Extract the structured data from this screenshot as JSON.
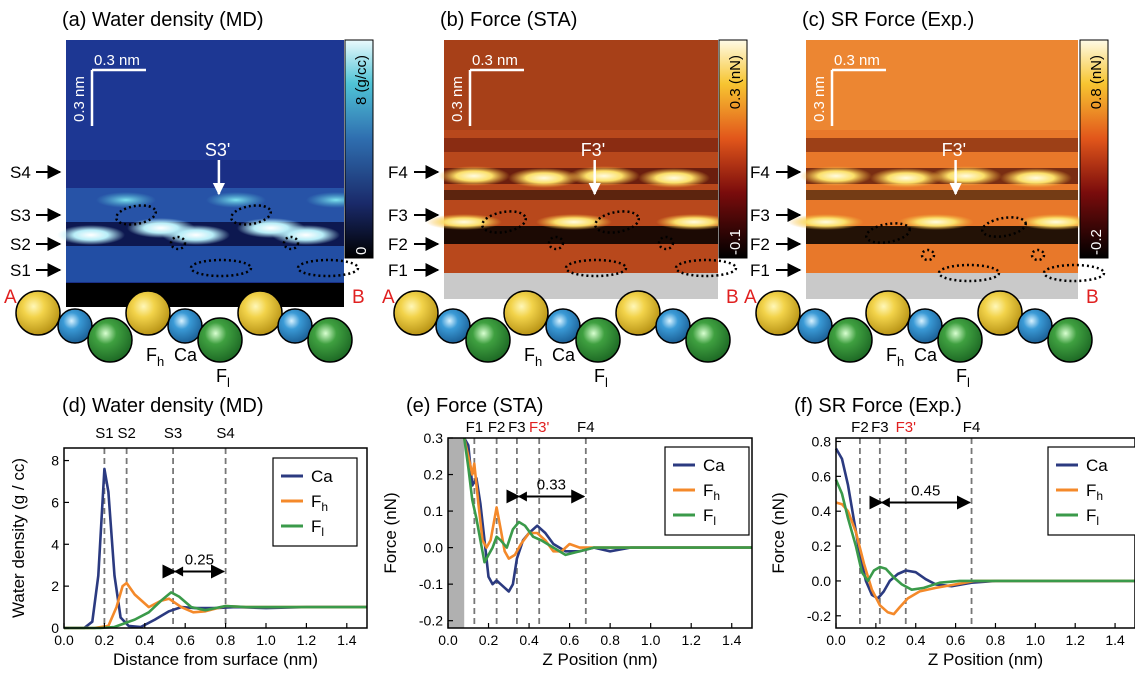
{
  "colors": {
    "Ca": "#2b3a80",
    "Fh": "#f4892a",
    "Fl": "#3a9a4a",
    "ref": "#e02020",
    "grid": "#777777"
  },
  "maps": [
    {
      "title": "(a) Water density (MD)",
      "scale_label": "0.3 nm",
      "colorbar": {
        "max_label": "8",
        "min_label": "0",
        "unit": "(g/cc)",
        "scheme": "black-blue-cyan-white"
      },
      "arrow_label": "S3'",
      "layers": [
        "S4",
        "S3",
        "S2",
        "S1"
      ],
      "end_labels": [
        "A",
        "B"
      ],
      "atom_labels": [
        "F",
        "h",
        "Ca",
        "F",
        "l"
      ]
    },
    {
      "title": "(b) Force (STA)",
      "scale_label": "0.3 nm",
      "colorbar": {
        "max_label": "0.3",
        "min_label": "-0.1",
        "unit": "(nN)",
        "scheme": "black-red-orange-yellow-white"
      },
      "arrow_label": "F3'",
      "layers": [
        "F4",
        "F3",
        "F2",
        "F1"
      ],
      "end_labels": [
        "A",
        "B"
      ],
      "atom_labels": [
        "F",
        "h",
        "Ca",
        "F",
        "l"
      ]
    },
    {
      "title": "(c) SR Force (Exp.)",
      "scale_label": "0.3 nm",
      "colorbar": {
        "max_label": "0.8",
        "min_label": "-0.2",
        "unit": "(nN)",
        "scheme": "black-red-orange-yellow-white"
      },
      "arrow_label": "F3'",
      "layers": [
        "F4",
        "F3",
        "F2",
        "F1"
      ],
      "end_labels": [
        "A",
        "B"
      ],
      "atom_labels": [
        "F",
        "h",
        "Ca",
        "F",
        "l"
      ]
    }
  ],
  "chart_data": [
    {
      "type": "line",
      "title": "(d) Water density (MD)",
      "xlabel": "Distance from surface (nm)",
      "ylabel": "Water density (g / cc)",
      "xlim": [
        0,
        1.5
      ],
      "ylim": [
        0,
        8.6
      ],
      "xticks": [
        "0.0",
        "0.2",
        "0.4",
        "0.6",
        "0.8",
        "1.0",
        "1.2",
        "1.4"
      ],
      "yticks": [
        "0",
        "2",
        "4",
        "6",
        "8"
      ],
      "vlines": [
        {
          "x": 0.2,
          "label": "S1"
        },
        {
          "x": 0.31,
          "label": "S2"
        },
        {
          "x": 0.54,
          "label": "S3"
        },
        {
          "x": 0.8,
          "label": "S4"
        }
      ],
      "span": {
        "x1": 0.54,
        "x2": 0.8,
        "label": "0.25",
        "y": 2.7
      },
      "shade": null,
      "legend": "top-right",
      "series": [
        {
          "name": "Ca",
          "key": "Ca",
          "points": [
            [
              0,
              0
            ],
            [
              0.1,
              0
            ],
            [
              0.14,
              0.3
            ],
            [
              0.17,
              2.5
            ],
            [
              0.2,
              7.6
            ],
            [
              0.22,
              6.5
            ],
            [
              0.25,
              2.5
            ],
            [
              0.28,
              0.5
            ],
            [
              0.32,
              0.1
            ],
            [
              0.38,
              0.05
            ],
            [
              0.45,
              0.4
            ],
            [
              0.52,
              0.8
            ],
            [
              0.58,
              1.0
            ],
            [
              0.65,
              0.95
            ],
            [
              0.75,
              0.95
            ],
            [
              0.85,
              1.0
            ],
            [
              1.0,
              0.95
            ],
            [
              1.2,
              1.0
            ],
            [
              1.5,
              1.0
            ]
          ]
        },
        {
          "name": "F",
          "sub": "h",
          "key": "Fh",
          "points": [
            [
              0,
              0
            ],
            [
              0.15,
              0
            ],
            [
              0.22,
              0.1
            ],
            [
              0.26,
              1.0
            ],
            [
              0.29,
              2.0
            ],
            [
              0.31,
              2.15
            ],
            [
              0.35,
              1.6
            ],
            [
              0.42,
              1.0
            ],
            [
              0.48,
              1.3
            ],
            [
              0.52,
              1.4
            ],
            [
              0.58,
              1.0
            ],
            [
              0.64,
              0.75
            ],
            [
              0.7,
              0.8
            ],
            [
              0.8,
              1.05
            ],
            [
              0.9,
              1.0
            ],
            [
              1.1,
              1.0
            ],
            [
              1.5,
              1.0
            ]
          ]
        },
        {
          "name": "F",
          "sub": "l",
          "key": "Fl",
          "points": [
            [
              0,
              0
            ],
            [
              0.18,
              0
            ],
            [
              0.25,
              0.05
            ],
            [
              0.35,
              0.4
            ],
            [
              0.42,
              0.75
            ],
            [
              0.48,
              1.3
            ],
            [
              0.53,
              1.7
            ],
            [
              0.57,
              1.5
            ],
            [
              0.63,
              1.0
            ],
            [
              0.7,
              0.85
            ],
            [
              0.8,
              1.05
            ],
            [
              0.9,
              1.0
            ],
            [
              1.2,
              1.0
            ],
            [
              1.5,
              1.0
            ]
          ]
        }
      ]
    },
    {
      "type": "line",
      "title": "(e) Force (STA)",
      "xlabel": "Z Position (nm)",
      "ylabel": "Force (nN)",
      "xlim": [
        0,
        1.5
      ],
      "ylim": [
        -0.22,
        0.3
      ],
      "xticks": [
        "0.0",
        "0.2",
        "0.4",
        "0.6",
        "0.8",
        "1.0",
        "1.2",
        "1.4"
      ],
      "yticks": [
        "-0.2",
        "-0.1",
        "0.0",
        "0.1",
        "0.2",
        "0.3"
      ],
      "vlines": [
        {
          "x": 0.13,
          "label": "F1"
        },
        {
          "x": 0.24,
          "label": "F2"
        },
        {
          "x": 0.34,
          "label": "F3"
        },
        {
          "x": 0.45,
          "label": "F3'",
          "red": true
        },
        {
          "x": 0.68,
          "label": "F4"
        }
      ],
      "span": {
        "x1": 0.34,
        "x2": 0.68,
        "label": "0.33",
        "y": 0.14
      },
      "shade": {
        "x1": 0,
        "x2": 0.08
      },
      "legend": "top-right",
      "series": [
        {
          "name": "Ca",
          "key": "Ca",
          "points": [
            [
              0.08,
              0.3
            ],
            [
              0.1,
              0.28
            ],
            [
              0.12,
              0.17
            ],
            [
              0.14,
              0.19
            ],
            [
              0.16,
              0.12
            ],
            [
              0.18,
              0.02
            ],
            [
              0.2,
              -0.08
            ],
            [
              0.22,
              -0.1
            ],
            [
              0.24,
              -0.09
            ],
            [
              0.26,
              -0.1
            ],
            [
              0.28,
              -0.11
            ],
            [
              0.3,
              -0.12
            ],
            [
              0.32,
              -0.1
            ],
            [
              0.34,
              -0.03
            ],
            [
              0.37,
              0.02
            ],
            [
              0.4,
              0.04
            ],
            [
              0.44,
              0.06
            ],
            [
              0.48,
              0.04
            ],
            [
              0.52,
              0.01
            ],
            [
              0.58,
              -0.01
            ],
            [
              0.65,
              -0.01
            ],
            [
              0.72,
              0.0
            ],
            [
              0.8,
              -0.01
            ],
            [
              0.9,
              0.0
            ],
            [
              1.1,
              0.0
            ],
            [
              1.3,
              0.0
            ],
            [
              1.5,
              0.0
            ]
          ]
        },
        {
          "name": "F",
          "sub": "h",
          "key": "Fh",
          "points": [
            [
              0.08,
              0.3
            ],
            [
              0.1,
              0.25
            ],
            [
              0.12,
              0.2
            ],
            [
              0.13,
              0.23
            ],
            [
              0.15,
              0.12
            ],
            [
              0.17,
              0.02
            ],
            [
              0.19,
              0.0
            ],
            [
              0.21,
              0.02
            ],
            [
              0.24,
              0.11
            ],
            [
              0.26,
              0.05
            ],
            [
              0.28,
              -0.01
            ],
            [
              0.3,
              -0.03
            ],
            [
              0.33,
              -0.02
            ],
            [
              0.36,
              0.01
            ],
            [
              0.4,
              0.04
            ],
            [
              0.44,
              0.04
            ],
            [
              0.48,
              0.02
            ],
            [
              0.52,
              -0.01
            ],
            [
              0.56,
              -0.01
            ],
            [
              0.6,
              0.01
            ],
            [
              0.65,
              0.0
            ],
            [
              0.72,
              0.0
            ],
            [
              0.8,
              0.0
            ],
            [
              1.0,
              0.0
            ],
            [
              1.5,
              0.0
            ]
          ]
        },
        {
          "name": "F",
          "sub": "l",
          "key": "Fl",
          "points": [
            [
              0.08,
              0.3
            ],
            [
              0.1,
              0.22
            ],
            [
              0.12,
              0.13
            ],
            [
              0.14,
              0.08
            ],
            [
              0.16,
              0.02
            ],
            [
              0.18,
              -0.04
            ],
            [
              0.2,
              -0.02
            ],
            [
              0.22,
              0.0
            ],
            [
              0.24,
              0.03
            ],
            [
              0.26,
              0.02
            ],
            [
              0.29,
              0.0
            ],
            [
              0.32,
              0.05
            ],
            [
              0.35,
              0.07
            ],
            [
              0.38,
              0.06
            ],
            [
              0.42,
              0.03
            ],
            [
              0.46,
              0.02
            ],
            [
              0.52,
              0.0
            ],
            [
              0.58,
              -0.02
            ],
            [
              0.65,
              -0.01
            ],
            [
              0.72,
              0.0
            ],
            [
              0.9,
              0.0
            ],
            [
              1.2,
              0.0
            ],
            [
              1.5,
              0.0
            ]
          ]
        }
      ]
    },
    {
      "type": "line",
      "title": "(f) SR Force (Exp.)",
      "xlabel": "Z Position (nm)",
      "ylabel": "Force (nN)",
      "xlim": [
        0,
        1.5
      ],
      "ylim": [
        -0.27,
        0.82
      ],
      "xticks": [
        "0.0",
        "0.2",
        "0.4",
        "0.6",
        "0.8",
        "1.0",
        "1.2",
        "1.4"
      ],
      "yticks": [
        "-0.2",
        "0.0",
        "0.2",
        "0.4",
        "0.6",
        "0.8"
      ],
      "vlines": [
        {
          "x": 0.12,
          "label": "F2"
        },
        {
          "x": 0.22,
          "label": "F3"
        },
        {
          "x": 0.35,
          "label": "F3'",
          "red": true
        },
        {
          "x": 0.68,
          "label": "F4"
        }
      ],
      "span": {
        "x1": 0.22,
        "x2": 0.68,
        "label": "0.45",
        "y": 0.45
      },
      "shade": null,
      "legend": "top-right",
      "series": [
        {
          "name": "Ca",
          "key": "Ca",
          "points": [
            [
              0,
              0.76
            ],
            [
              0.03,
              0.7
            ],
            [
              0.06,
              0.55
            ],
            [
              0.09,
              0.35
            ],
            [
              0.12,
              0.15
            ],
            [
              0.15,
              0.0
            ],
            [
              0.18,
              -0.08
            ],
            [
              0.21,
              -0.1
            ],
            [
              0.24,
              -0.06
            ],
            [
              0.27,
              0.0
            ],
            [
              0.31,
              0.04
            ],
            [
              0.35,
              0.06
            ],
            [
              0.4,
              0.05
            ],
            [
              0.45,
              0.01
            ],
            [
              0.5,
              -0.02
            ],
            [
              0.58,
              -0.03
            ],
            [
              0.68,
              -0.01
            ],
            [
              0.8,
              0.0
            ],
            [
              1.0,
              0.0
            ],
            [
              1.5,
              0.0
            ]
          ]
        },
        {
          "name": "F",
          "sub": "h",
          "key": "Fh",
          "points": [
            [
              0,
              0.45
            ],
            [
              0.03,
              0.44
            ],
            [
              0.06,
              0.4
            ],
            [
              0.1,
              0.28
            ],
            [
              0.14,
              0.1
            ],
            [
              0.18,
              -0.05
            ],
            [
              0.22,
              -0.14
            ],
            [
              0.26,
              -0.18
            ],
            [
              0.29,
              -0.19
            ],
            [
              0.32,
              -0.15
            ],
            [
              0.36,
              -0.1
            ],
            [
              0.42,
              -0.06
            ],
            [
              0.5,
              -0.04
            ],
            [
              0.6,
              -0.02
            ],
            [
              0.7,
              0.0
            ],
            [
              0.9,
              0.0
            ],
            [
              1.5,
              0.0
            ]
          ]
        },
        {
          "name": "F",
          "sub": "l",
          "key": "Fl",
          "points": [
            [
              0,
              0.58
            ],
            [
              0.03,
              0.5
            ],
            [
              0.06,
              0.36
            ],
            [
              0.1,
              0.2
            ],
            [
              0.13,
              0.05
            ],
            [
              0.16,
              0.0
            ],
            [
              0.19,
              0.06
            ],
            [
              0.22,
              0.08
            ],
            [
              0.25,
              0.07
            ],
            [
              0.29,
              0.02
            ],
            [
              0.33,
              -0.02
            ],
            [
              0.38,
              -0.05
            ],
            [
              0.44,
              -0.04
            ],
            [
              0.52,
              -0.01
            ],
            [
              0.62,
              0.0
            ],
            [
              0.8,
              0.0
            ],
            [
              1.5,
              0.0
            ]
          ]
        }
      ]
    }
  ]
}
